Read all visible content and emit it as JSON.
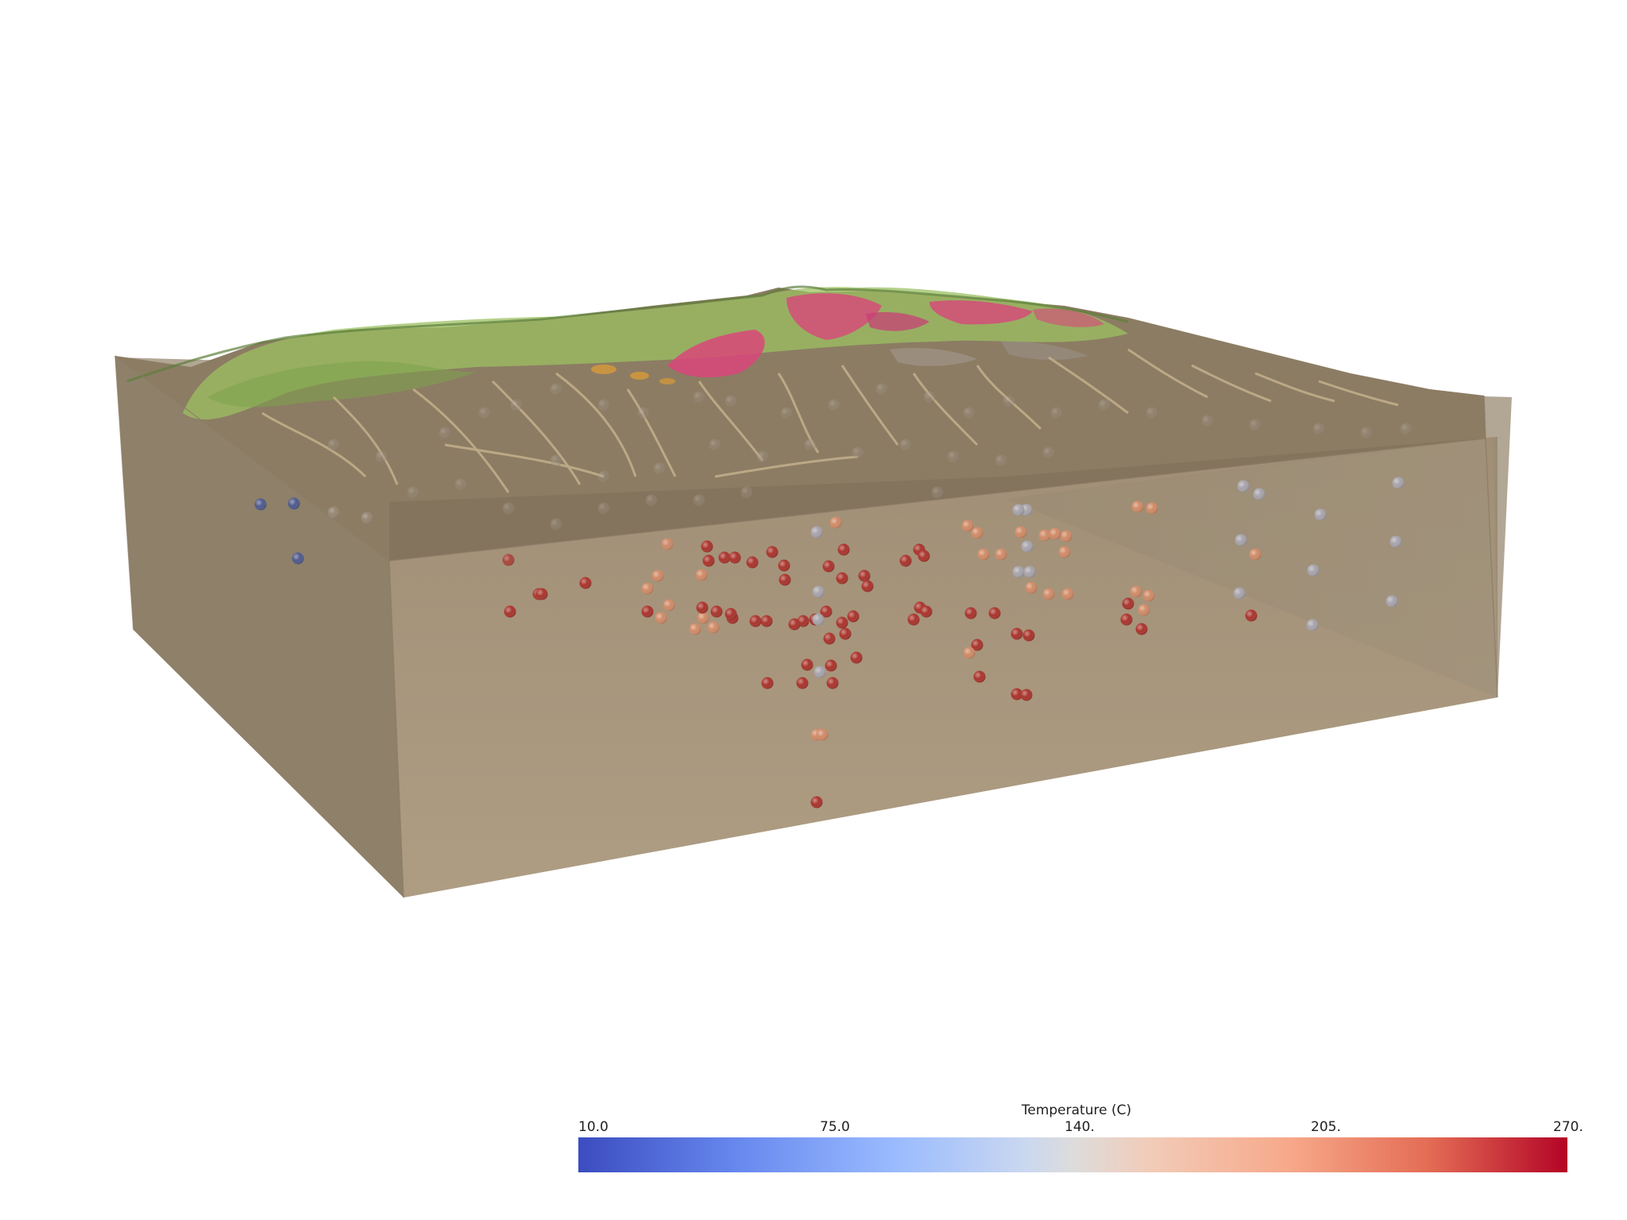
{
  "scene": {
    "box_color": "#a99b83",
    "terrain_colors": {
      "base": "#8c7c63",
      "wash": "#c7b48f",
      "vegetation": "#9cc062",
      "dark_vegetation": "#5d7f3a",
      "volcanic": "#d9467a",
      "orange_unit": "#d89a3a"
    }
  },
  "colorbar": {
    "title": "Temperature (C)",
    "min": 10,
    "max": 270,
    "ticks": [
      "10.0",
      "75.0",
      "140.",
      "205.",
      "270."
    ],
    "colormap": [
      "#3b4cc0",
      "#9abbff",
      "#dddcdc",
      "#f7a889",
      "#b40426"
    ]
  }
}
